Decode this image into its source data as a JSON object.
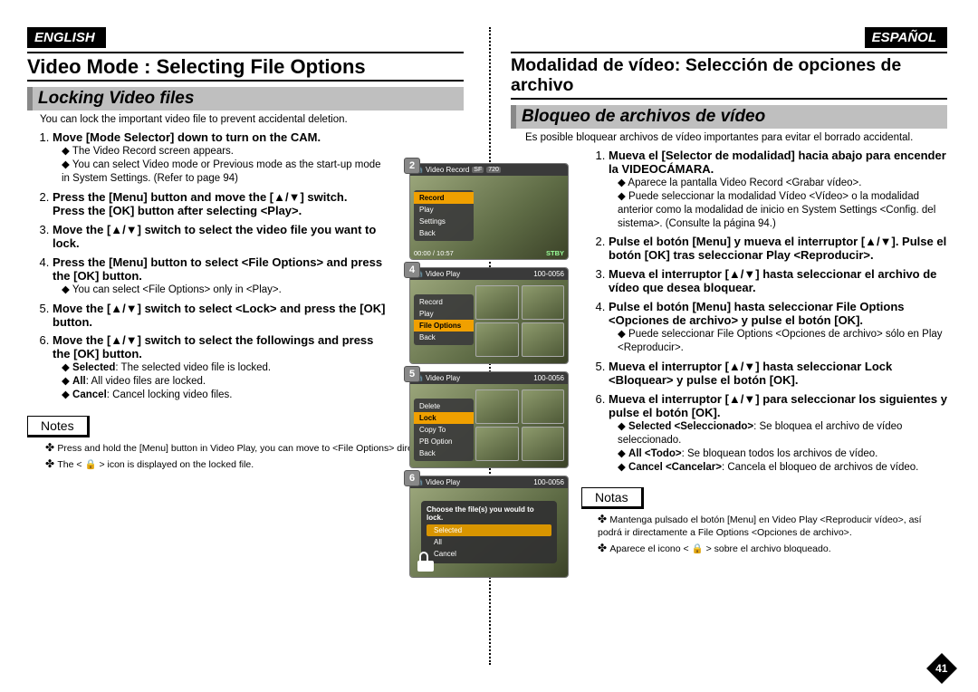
{
  "page_number": "41",
  "left": {
    "lang": "ENGLISH",
    "h1": "Video Mode : Selecting File Options",
    "h2": "Locking Video files",
    "intro": "You can lock the important video file to prevent accidental deletion.",
    "steps": [
      {
        "t": "Move [Mode Selector] down to turn on the CAM.",
        "bullets": [
          "The Video Record screen appears.",
          "You can select Video mode or Previous mode as the start-up mode in System Settings. (Refer to page 94)"
        ]
      },
      {
        "t": "Press the [Menu] button and move the [▲/▼] switch.",
        "sub": "Press the [OK] button after selecting <Play>."
      },
      {
        "t": "Move the [▲/▼] switch to select the video file you want to lock."
      },
      {
        "t": "Press the [Menu] button to select <File Options> and press the [OK] button.",
        "bullets": [
          "You can select <File Options> only in <Play>."
        ]
      },
      {
        "t": "Move the [▲/▼] switch to select <Lock> and press the [OK] button."
      },
      {
        "t": "Move the [▲/▼] switch to select the followings and press the [OK] button.",
        "bullets": [
          "Selected: The selected video file is locked.",
          "All: All video files are locked.",
          "Cancel: Cancel locking video files."
        ],
        "bold_prefix": [
          "Selected",
          "All",
          "Cancel"
        ]
      }
    ],
    "notes_label": "Notes",
    "notes": [
      "Press and hold the [Menu] button in Video Play, you can move to <File Options> directly.",
      "The < 🔒 > icon is displayed on the locked file."
    ]
  },
  "right": {
    "lang": "ESPAÑOL",
    "h1": "Modalidad de vídeo: Selección de opciones de archivo",
    "h2": "Bloqueo de archivos de vídeo",
    "intro": "Es posible bloquear archivos de vídeo importantes para evitar el borrado accidental.",
    "steps": [
      {
        "t": "Mueva el [Selector de modalidad] hacia abajo para encender la VIDEOCÁMARA.",
        "bullets": [
          "Aparece la pantalla Video Record <Grabar vídeo>.",
          "Puede seleccionar la modalidad Vídeo <Vídeo> o la modalidad anterior como la modalidad de inicio en System Settings <Config. del sistema>. (Consulte la página 94.)"
        ]
      },
      {
        "t": "Pulse el botón [Menu] y mueva el interruptor [▲/▼]. Pulse el botón [OK] tras seleccionar Play <Reproducir>."
      },
      {
        "t": "Mueva el interruptor [▲/▼] hasta seleccionar el archivo de vídeo que desea bloquear."
      },
      {
        "t": "Pulse el botón [Menu] hasta seleccionar File Options <Opciones de archivo> y pulse el botón [OK].",
        "bullets": [
          "Puede seleccionar File Options <Opciones de archivo> sólo en Play <Reproducir>."
        ]
      },
      {
        "t": "Mueva el interruptor [▲/▼] hasta seleccionar Lock <Bloquear> y pulse el botón [OK]."
      },
      {
        "t": "Mueva el interruptor [▲/▼] para seleccionar los siguientes y pulse el botón [OK].",
        "bullets": [
          "Selected <Seleccionado>: Se bloquea el archivo de vídeo seleccionado.",
          "All <Todo>: Se bloquean todos los archivos de vídeo.",
          "Cancel <Cancelar>: Cancela el bloqueo de archivos de vídeo."
        ],
        "bold_prefix": [
          "Selected <Seleccionado>",
          "All <Todo>",
          "Cancel <Cancelar>"
        ]
      }
    ],
    "notes_label": "Notas",
    "notes": [
      "Mantenga pulsado el botón [Menu] en Video Play <Reproducir vídeo>, así podrá ir directamente a File Options <Opciones de archivo>.",
      "Aparece el icono < 🔒 > sobre el archivo bloqueado."
    ]
  },
  "shots": {
    "s2": {
      "num": "2",
      "title": "Video Record",
      "chips": [
        "SF",
        "720"
      ],
      "menu": [
        "Record",
        "Play",
        "Settings",
        "Back"
      ],
      "sel": 0,
      "footer_left": "00:00 / 10:57",
      "footer_right": "STBY"
    },
    "s4": {
      "num": "4",
      "title": "Video Play",
      "folder": "100-0056",
      "menu": [
        "Record",
        "Play",
        "File Options",
        "Back"
      ],
      "sel": 2
    },
    "s5": {
      "num": "5",
      "title": "Video Play",
      "folder": "100-0056",
      "menu": [
        "Delete",
        "Lock",
        "Copy To",
        "PB Option",
        "Back"
      ],
      "sel": 1
    },
    "s6": {
      "num": "6",
      "title": "Video Play",
      "folder": "100-0056",
      "dialog_title": "Choose the file(s) you would to lock.",
      "menu": [
        "Selected",
        "All",
        "Cancel"
      ],
      "sel": 0
    }
  },
  "colors": {
    "accent": "#f0a000",
    "menu_bg": "#3c3c3c",
    "lcd_bg": "#c8c8c8",
    "badge_bg": "#888888"
  }
}
